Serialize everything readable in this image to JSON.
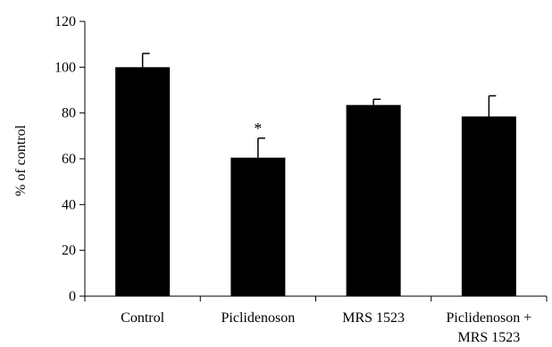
{
  "chart_data": {
    "type": "bar",
    "title": "",
    "xlabel": "",
    "ylabel": "% of control",
    "ylim": [
      0,
      120
    ],
    "yticks": [
      0,
      20,
      40,
      60,
      80,
      100,
      120
    ],
    "grid": false,
    "categories": [
      [
        "Control"
      ],
      [
        "Piclidenoson"
      ],
      [
        "MRS 1523"
      ],
      [
        "Piclidenoson +",
        "MRS 1523"
      ]
    ],
    "values": [
      100,
      60.5,
      83.5,
      78.5
    ],
    "errors": [
      6,
      8.5,
      2.5,
      9
    ],
    "annotations": [
      "",
      "*",
      "",
      ""
    ],
    "bar_color": "#000000"
  }
}
